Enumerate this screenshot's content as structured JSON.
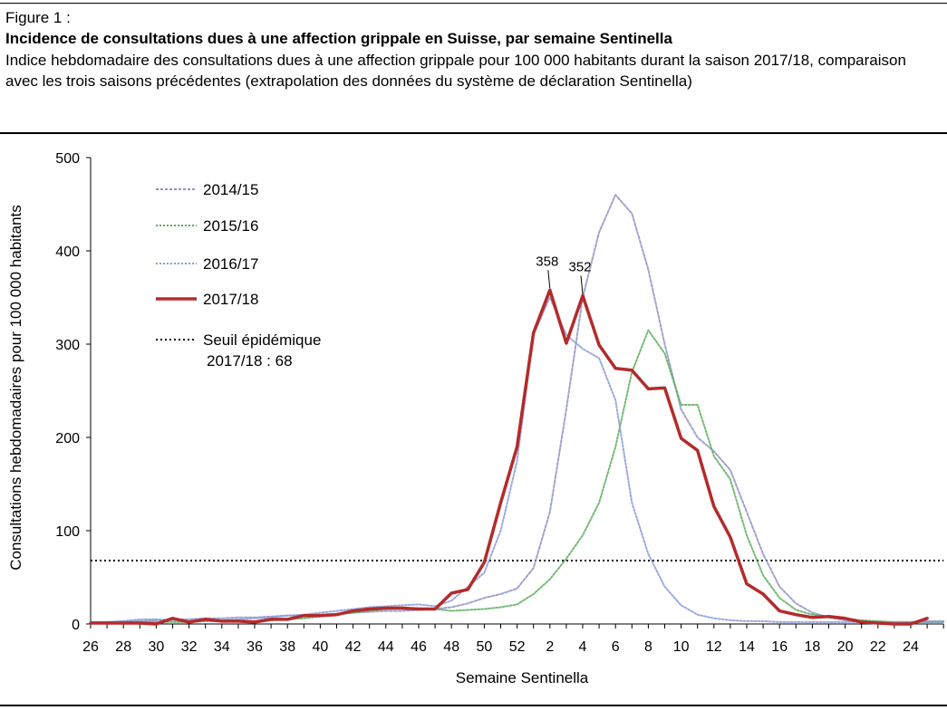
{
  "header": {
    "figure_label": "Figure 1 :",
    "title": "Incidence de consultations dues à une affection grippale en Suisse, par semaine Sentinella",
    "subtitle": "Indice hebdomadaire des consultations dues à une affection grippale pour 100 000 habitants durant la saison 2017/18, comparaison avec les trois saisons précédentes (extrapolation des données du système de déclaration Sentinella)"
  },
  "colors": {
    "s2014": "#8f93c6",
    "s2015": "#5cae5c",
    "s2016": "#8b9ad8",
    "s2017": "#b32b2b",
    "threshold": "#000000"
  },
  "chart_data": {
    "type": "line",
    "xlabel": "Semaine Sentinella",
    "ylabel": "Consultations hebdomadaires pour 100 000 habitants",
    "ylim": [
      0,
      500
    ],
    "yticks": [
      "0",
      "100",
      "200",
      "300",
      "400",
      "500"
    ],
    "weeks": [
      26,
      27,
      28,
      29,
      30,
      31,
      32,
      33,
      34,
      35,
      36,
      37,
      38,
      39,
      40,
      41,
      42,
      43,
      44,
      45,
      46,
      47,
      48,
      49,
      50,
      51,
      52,
      1,
      2,
      3,
      4,
      5,
      6,
      7,
      8,
      9,
      10,
      11,
      12,
      13,
      14,
      15,
      16,
      17,
      18,
      19,
      20,
      21,
      22,
      23,
      24,
      25,
      26
    ],
    "xtick_labels": [
      "26",
      "28",
      "30",
      "32",
      "34",
      "36",
      "38",
      "40",
      "42",
      "44",
      "46",
      "48",
      "50",
      "52",
      "2",
      "4",
      "6",
      "8",
      "10",
      "12",
      "14",
      "16",
      "18",
      "20",
      "22",
      "24"
    ],
    "grid": false,
    "legend_position": "top-left",
    "legend": {
      "threshold_label": "Seuil épidémique",
      "threshold_note": "2017/18 : 68"
    },
    "threshold": 68,
    "series": [
      {
        "name": "2014/15",
        "style": "dashed",
        "values": [
          2,
          2,
          3,
          3,
          4,
          5,
          5,
          6,
          6,
          7,
          7,
          8,
          9,
          9,
          10,
          11,
          12,
          13,
          14,
          14,
          15,
          16,
          18,
          22,
          28,
          32,
          38,
          60,
          120,
          230,
          350,
          420,
          460,
          440,
          380,
          300,
          230,
          200,
          185,
          165,
          120,
          75,
          40,
          22,
          12,
          7,
          4,
          2,
          2,
          2,
          2,
          3,
          3
        ]
      },
      {
        "name": "2015/16",
        "style": "dashed",
        "values": [
          2,
          2,
          2,
          2,
          2,
          2,
          2,
          3,
          3,
          3,
          3,
          4,
          5,
          6,
          8,
          10,
          12,
          14,
          16,
          17,
          17,
          16,
          14,
          15,
          16,
          18,
          21,
          32,
          48,
          70,
          95,
          130,
          190,
          270,
          315,
          290,
          235,
          235,
          180,
          155,
          95,
          52,
          28,
          15,
          10,
          8,
          6,
          4,
          3,
          2,
          2,
          2,
          2
        ]
      },
      {
        "name": "2016/17",
        "style": "dashed",
        "values": [
          2,
          2,
          3,
          5,
          5,
          4,
          3,
          3,
          4,
          5,
          6,
          7,
          9,
          10,
          12,
          14,
          16,
          18,
          19,
          20,
          21,
          19,
          25,
          40,
          55,
          100,
          175,
          310,
          350,
          310,
          295,
          285,
          240,
          130,
          75,
          40,
          20,
          10,
          6,
          4,
          3,
          3,
          2,
          2,
          2,
          2,
          2,
          2,
          2,
          2,
          2,
          2,
          2
        ]
      },
      {
        "name": "2017/18",
        "style": "solid",
        "values": [
          1,
          1,
          1,
          1,
          0,
          6,
          2,
          5,
          3,
          3,
          2,
          5,
          5,
          9,
          9,
          10,
          14,
          16,
          17,
          17,
          16,
          16,
          33,
          37,
          66,
          130,
          190,
          312,
          358,
          301,
          352,
          299,
          274,
          272,
          252,
          253,
          199,
          186,
          126,
          93,
          43,
          32,
          14,
          10,
          7,
          8,
          6,
          2,
          1,
          0,
          0,
          6,
          null
        ]
      }
    ],
    "annotations": [
      {
        "week_index": 28,
        "value": 358,
        "text": "358"
      },
      {
        "week_index": 30,
        "value": 352,
        "text": "352"
      }
    ]
  }
}
